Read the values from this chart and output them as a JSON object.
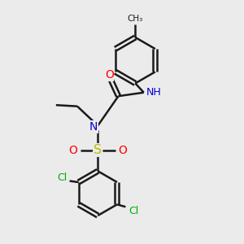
{
  "background_color": "#ebebeb",
  "bond_color": "#1a1a1a",
  "bond_width": 1.8,
  "atom_colors": {
    "O": "#ff0000",
    "N_amide": "#0000dd",
    "N_sulfonamide": "#0000dd",
    "H": "#008080",
    "S": "#bbbb00",
    "Cl": "#00aa00",
    "C": "#1a1a1a"
  },
  "figsize": [
    3.0,
    3.0
  ],
  "dpi": 100,
  "xlim": [
    0,
    10
  ],
  "ylim": [
    0,
    10
  ]
}
